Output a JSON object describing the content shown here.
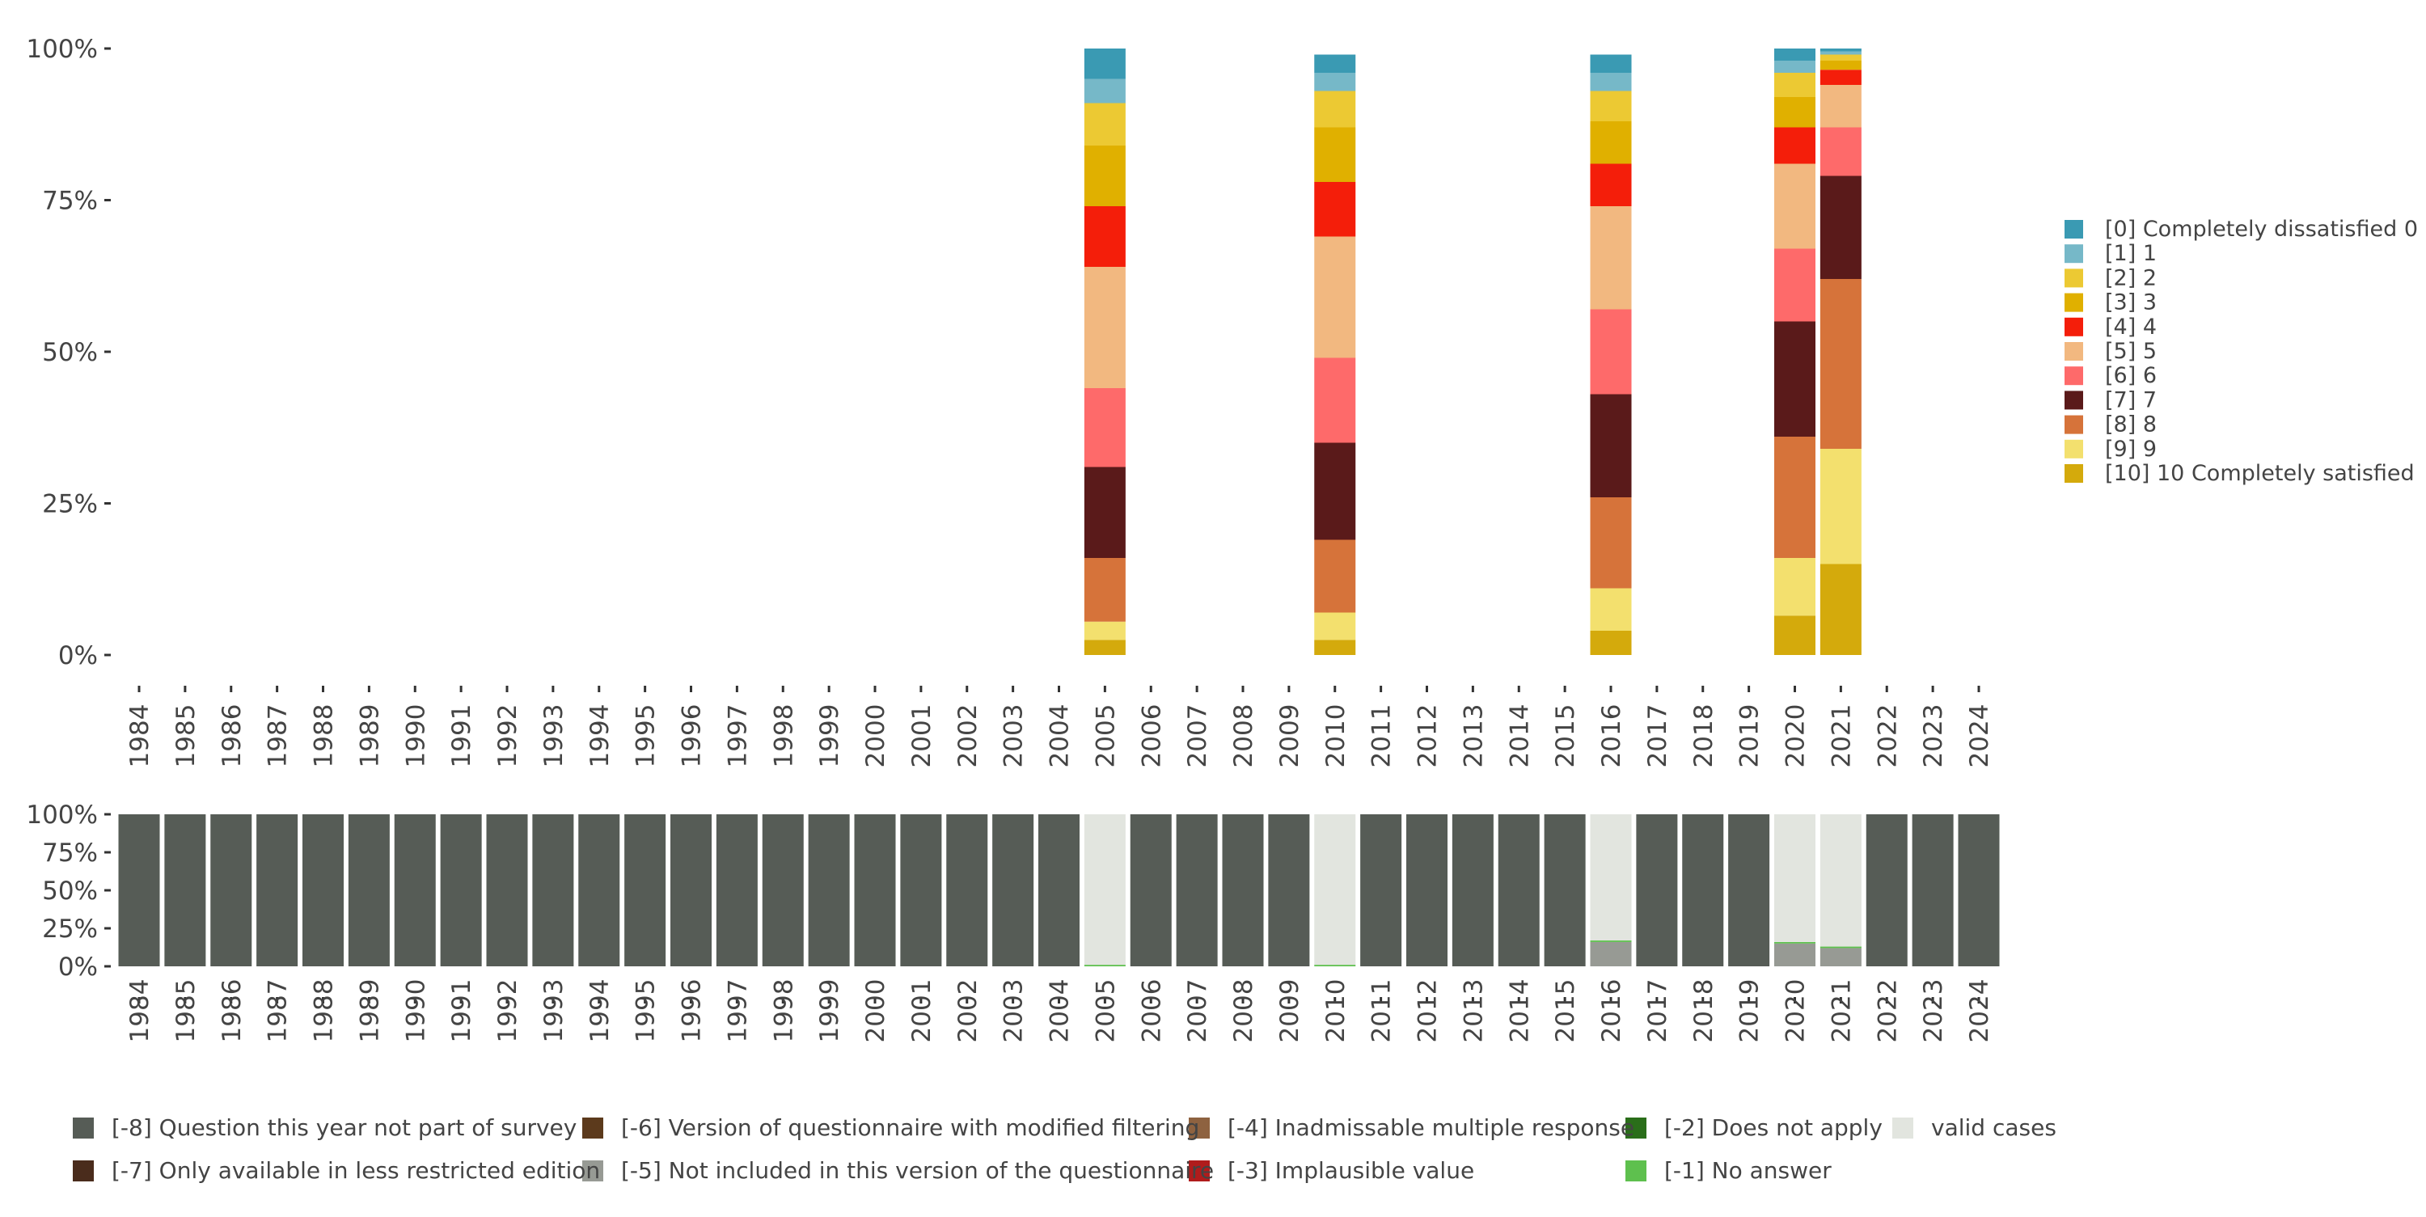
{
  "chart_data": [
    {
      "type": "bar",
      "stacked": true,
      "title": "",
      "xlabel": "",
      "ylabel": "",
      "ylim": [
        0,
        100
      ],
      "y_ticks": [
        "0%",
        "25%",
        "50%",
        "75%",
        "100%"
      ],
      "grid": false,
      "legend_position": "right",
      "categories": [
        "1984",
        "1985",
        "1986",
        "1987",
        "1988",
        "1989",
        "1990",
        "1991",
        "1992",
        "1993",
        "1994",
        "1995",
        "1996",
        "1997",
        "1998",
        "1999",
        "2000",
        "2001",
        "2002",
        "2003",
        "2004",
        "2005",
        "2006",
        "2007",
        "2008",
        "2009",
        "2010",
        "2011",
        "2012",
        "2013",
        "2014",
        "2015",
        "2016",
        "2017",
        "2018",
        "2019",
        "2020",
        "2021",
        "2022",
        "2023",
        "2024"
      ],
      "series": [
        {
          "name": "[0] Completely dissatisfied 0",
          "color": "#3a9ab3",
          "values": {
            "2005": 5,
            "2010": 3,
            "2016": 3,
            "2020": 2,
            "2021": 0.5
          }
        },
        {
          "name": "[1] 1",
          "color": "#76b8c8",
          "values": {
            "2005": 4,
            "2010": 3,
            "2016": 3,
            "2020": 2,
            "2021": 0.5
          }
        },
        {
          "name": "[2] 2",
          "color": "#ecc933",
          "values": {
            "2005": 7,
            "2010": 6,
            "2016": 5,
            "2020": 4,
            "2021": 1
          }
        },
        {
          "name": "[3] 3",
          "color": "#e0b000",
          "values": {
            "2005": 10,
            "2010": 9,
            "2016": 7,
            "2020": 5,
            "2021": 1.5
          }
        },
        {
          "name": "[4] 4",
          "color": "#f41e0a",
          "values": {
            "2005": 10,
            "2010": 9,
            "2016": 7,
            "2020": 6,
            "2021": 2.5
          }
        },
        {
          "name": "[5] 5",
          "color": "#f2b880",
          "values": {
            "2005": 20,
            "2010": 20,
            "2016": 17,
            "2020": 14,
            "2021": 7
          }
        },
        {
          "name": "[6] 6",
          "color": "#fe6a6a",
          "values": {
            "2005": 13,
            "2010": 14,
            "2016": 14,
            "2020": 12,
            "2021": 8
          }
        },
        {
          "name": "[7] 7",
          "color": "#5a1a1a",
          "values": {
            "2005": 15,
            "2010": 16,
            "2016": 17,
            "2020": 19,
            "2021": 17
          }
        },
        {
          "name": "[8] 8",
          "color": "#d6733a",
          "values": {
            "2005": 10.5,
            "2010": 12,
            "2016": 15,
            "2020": 20,
            "2021": 28
          }
        },
        {
          "name": "[9] 9",
          "color": "#f3e06e",
          "values": {
            "2005": 3,
            "2010": 4.5,
            "2016": 7,
            "2020": 9.5,
            "2021": 19
          }
        },
        {
          "name": "[10] 10 Completely satisfied",
          "color": "#d4aa0c",
          "values": {
            "2005": 2.5,
            "2010": 2.5,
            "2016": 4,
            "2020": 6.5,
            "2021": 15
          }
        }
      ]
    },
    {
      "type": "bar",
      "stacked": true,
      "title": "",
      "xlabel": "",
      "ylabel": "",
      "ylim": [
        0,
        100
      ],
      "y_ticks": [
        "0%",
        "25%",
        "50%",
        "75%",
        "100%"
      ],
      "grid": false,
      "legend_position": "bottom",
      "categories": [
        "1984",
        "1985",
        "1986",
        "1987",
        "1988",
        "1989",
        "1990",
        "1991",
        "1992",
        "1993",
        "1994",
        "1995",
        "1996",
        "1997",
        "1998",
        "1999",
        "2000",
        "2001",
        "2002",
        "2003",
        "2004",
        "2005",
        "2006",
        "2007",
        "2008",
        "2009",
        "2010",
        "2011",
        "2012",
        "2013",
        "2014",
        "2015",
        "2016",
        "2017",
        "2018",
        "2019",
        "2020",
        "2021",
        "2022",
        "2023",
        "2024"
      ],
      "series": [
        {
          "name": "valid cases",
          "color": "#e2e5df",
          "values": {
            "2005": 99,
            "2010": 99,
            "2016": 83,
            "2020": 84,
            "2021": 87
          }
        },
        {
          "name": "[-1] No answer",
          "color": "#5ec04e",
          "values": {
            "2005": 1,
            "2010": 1,
            "2016": 1,
            "2020": 1,
            "2021": 1
          }
        },
        {
          "name": "[-2] Does not apply",
          "color": "#2a6e1a",
          "values": {}
        },
        {
          "name": "[-3] Implausible value",
          "color": "#b01c1c",
          "values": {}
        },
        {
          "name": "[-4] Inadmissable multiple response",
          "color": "#8e6240",
          "values": {}
        },
        {
          "name": "[-5] Not included in this version of the questionnaire",
          "color": "#979a94",
          "values": {
            "2016": 16,
            "2020": 15,
            "2021": 12
          }
        },
        {
          "name": "[-6] Version of questionnaire with modified filtering",
          "color": "#5c3a1c",
          "values": {}
        },
        {
          "name": "[-7] Only available in less restricted edition",
          "color": "#4a2c1c",
          "values": {}
        },
        {
          "name": "[-8] Question this year not part of survey",
          "color": "#565c56",
          "values": {
            "1984": 100,
            "1985": 100,
            "1986": 100,
            "1987": 100,
            "1988": 100,
            "1989": 100,
            "1990": 100,
            "1991": 100,
            "1992": 100,
            "1993": 100,
            "1994": 100,
            "1995": 100,
            "1996": 100,
            "1997": 100,
            "1998": 100,
            "1999": 100,
            "2000": 100,
            "2001": 100,
            "2002": 100,
            "2003": 100,
            "2004": 100,
            "2006": 100,
            "2007": 100,
            "2008": 100,
            "2009": 100,
            "2011": 100,
            "2012": 100,
            "2013": 100,
            "2014": 100,
            "2015": 100,
            "2017": 100,
            "2018": 100,
            "2019": 100,
            "2022": 100,
            "2023": 100,
            "2024": 100
          }
        }
      ],
      "legend_order": [
        "[-8] Question this year not part of survey",
        "[-6] Version of questionnaire with modified filtering",
        "[-4] Inadmissable multiple response",
        "[-2] Does not apply",
        "valid cases",
        "[-7] Only available in less restricted edition",
        "[-5] Not included in this version of the questionnaire",
        "[-3] Implausible value",
        "[-1] No answer"
      ]
    }
  ]
}
